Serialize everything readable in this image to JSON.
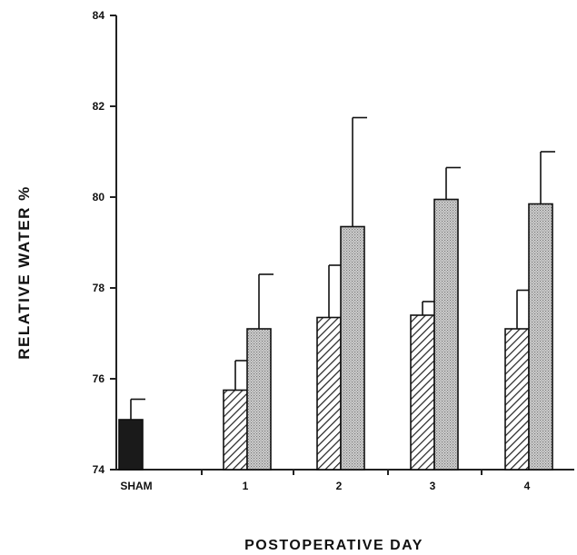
{
  "chart_data": {
    "type": "bar",
    "title": "",
    "xlabel": "POSTOPERATIVE  DAY",
    "ylabel": "RELATIVE  WATER  %",
    "ylim": [
      74,
      84
    ],
    "yticks": [
      "74",
      "76",
      "78",
      "80",
      "82",
      "84"
    ],
    "categories": [
      "SHAM",
      "1",
      "2",
      "3",
      "4"
    ],
    "series": [
      {
        "pattern": "solid",
        "values": [
          75.1,
          null,
          null,
          null,
          null
        ],
        "errors": [
          0.45,
          null,
          null,
          null,
          null
        ]
      },
      {
        "pattern": "hatched",
        "values": [
          null,
          75.75,
          77.35,
          77.4,
          77.1
        ],
        "errors": [
          null,
          0.65,
          1.15,
          0.3,
          0.85
        ]
      },
      {
        "pattern": "stippled",
        "values": [
          null,
          77.1,
          79.35,
          79.95,
          79.85
        ],
        "errors": [
          null,
          1.2,
          2.4,
          0.7,
          1.15
        ]
      }
    ],
    "grid": false,
    "colors": {
      "solid": "#1a1a1a",
      "hatch": "#222222",
      "stipple": "#b8b8b8",
      "axis": "#222222"
    }
  }
}
